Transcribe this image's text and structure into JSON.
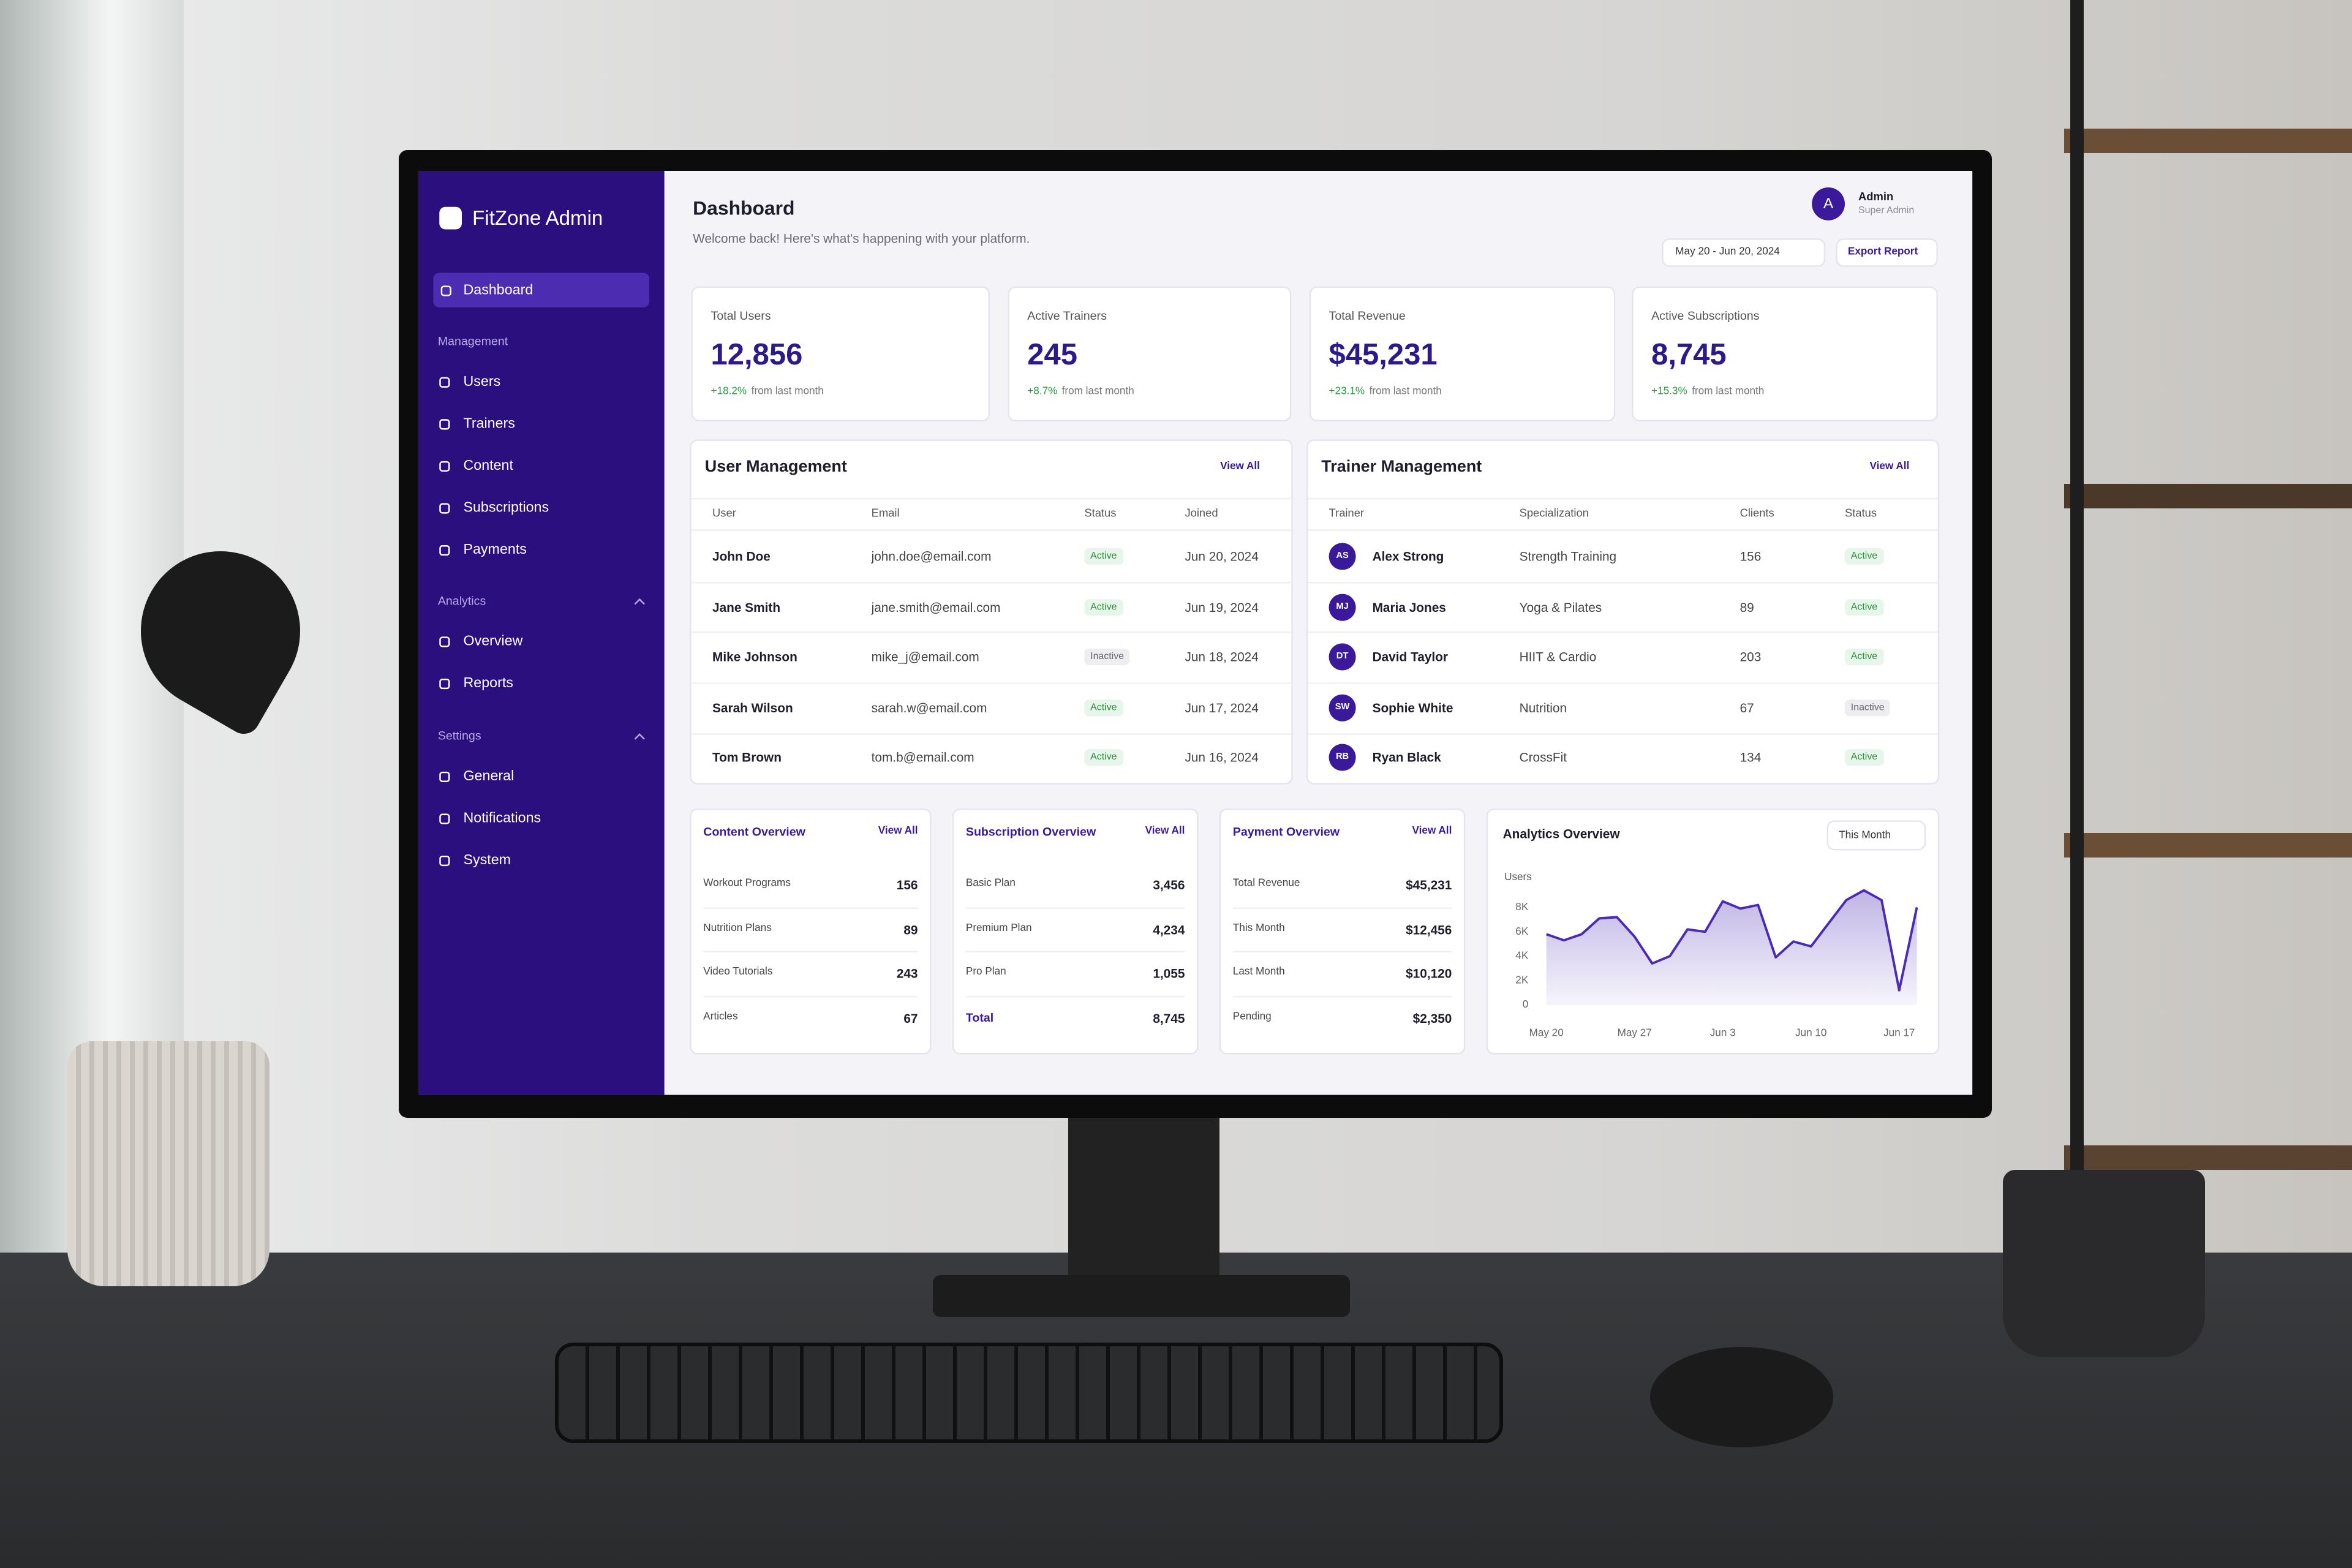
{
  "sidebar": {
    "brand": "FitZone Admin",
    "active": "Dashboard",
    "sections": [
      {
        "label": "Management",
        "items": [
          "Users",
          "Trainers",
          "Content",
          "Subscriptions",
          "Payments"
        ]
      },
      {
        "label": "Analytics",
        "items": [
          "Overview",
          "Reports"
        ]
      },
      {
        "label": "Settings",
        "items": [
          "General",
          "Notifications",
          "System"
        ]
      }
    ]
  },
  "header": {
    "title": "Dashboard",
    "subtitle": "Welcome back! Here's what's happening with your platform.",
    "avatar": "A",
    "user": "Admin",
    "role": "Super Admin",
    "date_range": "May 20 - Jun 20, 2024",
    "export": "Export Report"
  },
  "stats": [
    {
      "label": "Total Users",
      "value": "12,856",
      "change": "+18.2%",
      "note": "from last month"
    },
    {
      "label": "Active Trainers",
      "value": "245",
      "change": "+8.7%",
      "note": "from last month"
    },
    {
      "label": "Total Revenue",
      "value": "$45,231",
      "change": "+23.1%",
      "note": "from last month"
    },
    {
      "label": "Active Subscriptions",
      "value": "8,745",
      "change": "+15.3%",
      "note": "from last month"
    }
  ],
  "user_management": {
    "title": "User Management",
    "link": "View All",
    "columns": [
      "User",
      "Email",
      "Status",
      "Joined"
    ],
    "rows": [
      [
        "John Doe",
        "john.doe@email.com",
        "Active",
        "Jun 20, 2024"
      ],
      [
        "Jane Smith",
        "jane.smith@email.com",
        "Active",
        "Jun 19, 2024"
      ],
      [
        "Mike Johnson",
        "mike_j@email.com",
        "Inactive",
        "Jun 18, 2024"
      ],
      [
        "Sarah Wilson",
        "sarah.w@email.com",
        "Active",
        "Jun 17, 2024"
      ],
      [
        "Tom Brown",
        "tom.b@email.com",
        "Active",
        "Jun 16, 2024"
      ]
    ]
  },
  "trainer_management": {
    "title": "Trainer Management",
    "link": "View All",
    "columns": [
      "Trainer",
      "Specialization",
      "Clients",
      "Status"
    ],
    "rows": [
      {
        "initials": "AS",
        "name": "Alex Strong",
        "specialization": "Strength Training",
        "clients": "156",
        "status": "Active"
      },
      {
        "initials": "MJ",
        "name": "Maria Jones",
        "specialization": "Yoga & Pilates",
        "clients": "89",
        "status": "Active"
      },
      {
        "initials": "DT",
        "name": "David Taylor",
        "specialization": "HIIT & Cardio",
        "clients": "203",
        "status": "Active"
      },
      {
        "initials": "SW",
        "name": "Sophie White",
        "specialization": "Nutrition",
        "clients": "67",
        "status": "Inactive"
      },
      {
        "initials": "RB",
        "name": "Ryan Black",
        "specialization": "CrossFit",
        "clients": "134",
        "status": "Active"
      }
    ]
  },
  "overviews": [
    {
      "title": "Content Overview",
      "link": "View All",
      "rows": [
        [
          "Workout Programs",
          "156"
        ],
        [
          "Nutrition Plans",
          "89"
        ],
        [
          "Video Tutorials",
          "243"
        ],
        [
          "Articles",
          "67"
        ]
      ]
    },
    {
      "title": "Subscription Overview",
      "link": "View All",
      "rows": [
        [
          "Basic Plan",
          "3,456"
        ],
        [
          "Premium Plan",
          "4,234"
        ],
        [
          "Pro Plan",
          "1,055"
        ],
        [
          "Total",
          "8,745"
        ]
      ]
    },
    {
      "title": "Payment Overview",
      "link": "View All",
      "rows": [
        [
          "Total Revenue",
          "$45,231"
        ],
        [
          "This Month",
          "$12,456"
        ],
        [
          "Last Month",
          "$10,120"
        ],
        [
          "Pending",
          "$2,350"
        ]
      ]
    }
  ],
  "chart_data": {
    "type": "line",
    "title": "Analytics Overview",
    "filter": "This Month",
    "ylabel": "Users",
    "color": "#4b2bb5",
    "categories": [
      "May 20",
      null,
      null,
      null,
      null,
      "May 27",
      null,
      null,
      null,
      null,
      "Jun 3",
      null,
      null,
      null,
      null,
      "Jun 10",
      null,
      null,
      null,
      null,
      "Jun 17",
      null
    ],
    "values": [
      5800,
      5300,
      5800,
      7100,
      7200,
      5600,
      3400,
      4000,
      6200,
      6000,
      8500,
      7900,
      8200,
      3900,
      5200,
      4800,
      6700,
      8600,
      9400,
      8600,
      1200,
      8000
    ],
    "ylim": [
      0,
      10000
    ],
    "yticks": [
      0,
      {
        "value": 2000,
        "label": "2K"
      },
      {
        "value": 4000,
        "label": "4K"
      },
      {
        "value": 6000,
        "label": "6K"
      },
      {
        "value": 8000,
        "label": "8K"
      }
    ],
    "grid": false
  }
}
